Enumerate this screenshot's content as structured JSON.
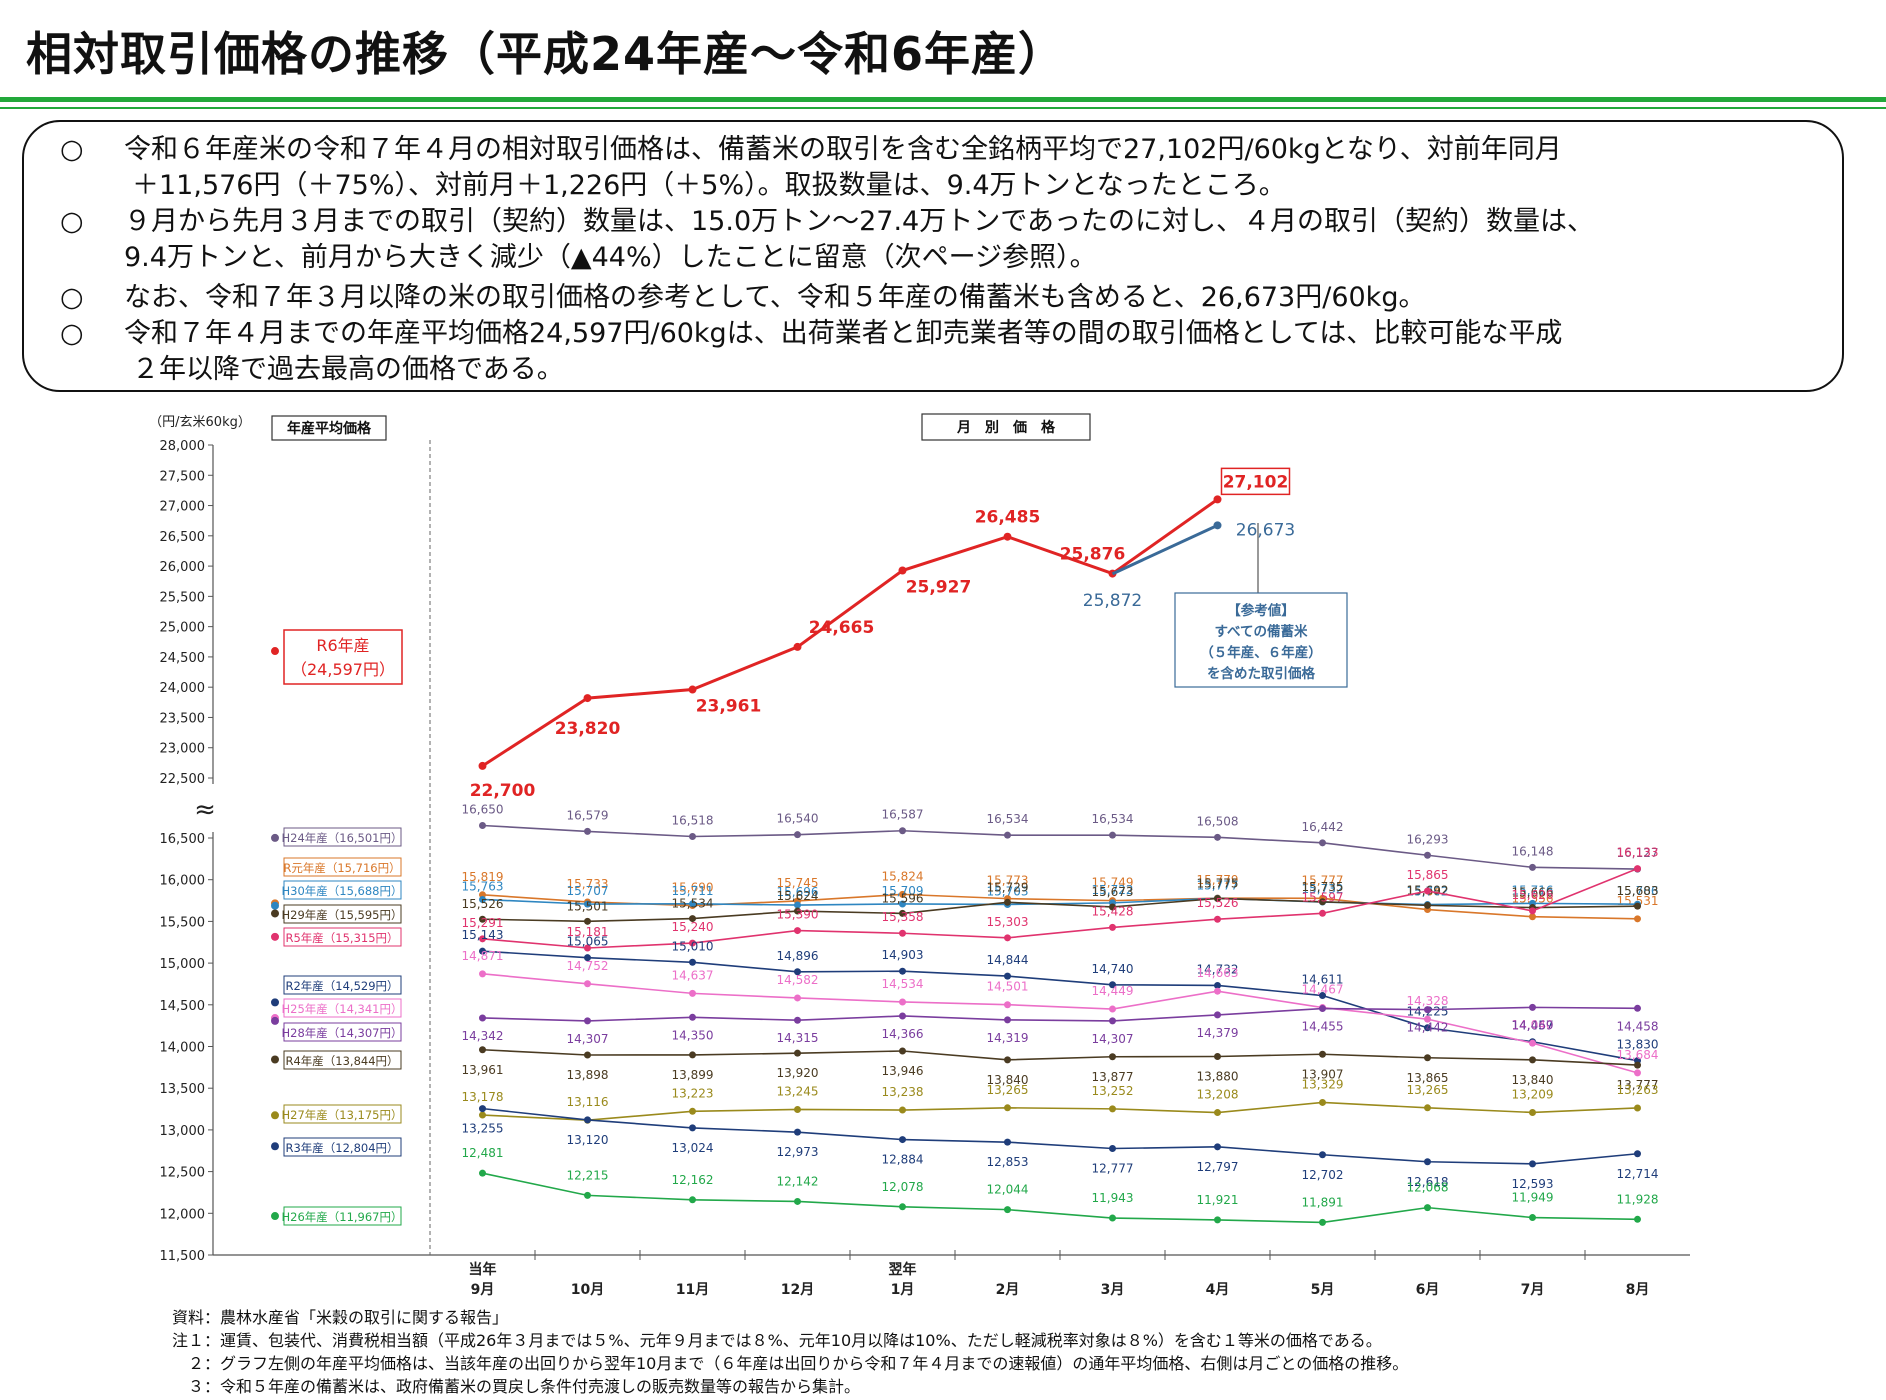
{
  "page": {
    "title": "相対取引価格の推移（平成24年産～令和6年産）",
    "bullets": [
      {
        "mark": "○",
        "lines": [
          "令和６年産米の令和７年４月の相対取引価格は、備蓄米の取引を含む全銘柄平均で27,102円/60kgとなり、対前年同月",
          "＋11,576円（＋75%）、対前月＋1,226円（＋5%）。取扱数量は、9.4万トンとなったところ。"
        ]
      },
      {
        "mark": "○",
        "lines": [
          "９月から先月３月までの取引（契約）数量は、15.0万トン～27.4万トンであったのに対し、４月の取引（契約）数量は、",
          "9.4万トンと、前月から大きく減少（▲44%）したことに留意（次ページ参照）。"
        ]
      },
      {
        "mark": "○",
        "lines": [
          "なお、令和７年３月以降の米の取引価格の参考として、令和５年産の備蓄米も含めると、26,673円/60kg。"
        ]
      },
      {
        "mark": "○",
        "lines": [
          "令和７年４月までの年産平均価格24,597円/60kgは、出荷業者と卸売業者等の間の取引価格としては、比較可能な平成",
          "２年以降で過去最高の価格である。"
        ]
      }
    ],
    "notes": [
      "資料：農林水産省「米穀の取引に関する報告」",
      "注１：運賃、包装代、消費税相当額（平成26年３月までは５%、元年９月までは８%、元年10月以降は10%、ただし軽減税率対象は８%）を含む１等米の価格である。",
      "　２：グラフ左側の年産平均価格は、当該年産の出回りから翌年10月まで（６年産は出回りから令和７年４月までの速報値）の通年平均価格、右側は月ごとの価格の推移。",
      "　３：令和５年産の備蓄米は、政府備蓄米の買戻し条件付売渡しの販売数量等の報告から集計。"
    ]
  },
  "chart_data": {
    "type": "line",
    "ylabel": "（円/玄米60kg）",
    "left_panel_label": "年産平均価格",
    "right_panel_label": "月　別　価　格",
    "axis_break": "≈",
    "upper_ylim": [
      22500,
      28000
    ],
    "lower_ylim": [
      11500,
      16500
    ],
    "upper_ticks": [
      "28,000",
      "27,500",
      "27,000",
      "26,500",
      "26,000",
      "25,500",
      "25,000",
      "24,500",
      "24,000",
      "23,500",
      "23,000",
      "22,500"
    ],
    "lower_ticks": [
      "16,500",
      "16,000",
      "15,500",
      "15,000",
      "14,500",
      "14,000",
      "13,500",
      "13,000",
      "12,500",
      "12,000",
      "11,500"
    ],
    "categories": [
      "9月",
      "10月",
      "11月",
      "12月",
      "1月",
      "2月",
      "3月",
      "4月",
      "5月",
      "6月",
      "7月",
      "8月"
    ],
    "category_top_labels": [
      "当年",
      "",
      "",
      "",
      "翌年",
      "",
      "",
      "",
      "",
      "",
      "",
      ""
    ],
    "series": [
      {
        "name": "H24年産",
        "avg_label": "H24年産（16,501円）",
        "avg": 16501,
        "color": "#6b5a86",
        "values": [
          16650,
          16579,
          16518,
          16540,
          16587,
          16534,
          16534,
          16508,
          16442,
          16293,
          16148,
          16127
        ],
        "labels": [
          "16,650",
          "16,579",
          "16,518",
          "16,540",
          "16,587",
          "16,534",
          "16,534",
          "16,508",
          "16,442",
          "16,293",
          "16,148",
          "16,127"
        ]
      },
      {
        "name": "R元年産",
        "avg_label": "R元年産（15,716円）",
        "avg": 15716,
        "color": "#d9772a",
        "values": [
          15819,
          15733,
          15690,
          15745,
          15824,
          15773,
          15749,
          15779,
          15777,
          15642,
          15556,
          15531
        ],
        "labels": [
          "15,819",
          "15,733",
          "15,690",
          "15,745",
          "15,824",
          "15,773",
          "15,749",
          "15,779",
          "15,777",
          "15,642",
          "15,556",
          "15,531"
        ]
      },
      {
        "name": "H30年産",
        "avg_label": "H30年産（15,688円）",
        "avg": 15688,
        "color": "#2e86c1",
        "values": [
          15763,
          15707,
          15711,
          15696,
          15709,
          15703,
          15722,
          15777,
          15732,
          15702,
          15716,
          15706
        ],
        "labels": [
          "15,763",
          "15,707",
          "15,711",
          "15,696",
          "15,709",
          "15,703",
          "15,722",
          "15,777",
          "15,732",
          "15,702",
          "15,716",
          "15,706"
        ]
      },
      {
        "name": "H29年産",
        "avg_label": "H29年産（15,595円）",
        "avg": 15595,
        "color": "#4a3b22",
        "values": [
          15526,
          15501,
          15534,
          15624,
          15596,
          15729,
          15673,
          15775,
          15735,
          15692,
          15666,
          15683
        ],
        "labels": [
          "15,526",
          "15,501",
          "15,534",
          "15,624",
          "15,596",
          "15,729",
          "15,673",
          "15,775",
          "15,735",
          "15,692",
          "15,666",
          "15,683"
        ]
      },
      {
        "name": "R5年産",
        "avg_label": "R5年産（15,315円）",
        "avg": 15315,
        "color": "#e0336e",
        "values": [
          15291,
          15181,
          15240,
          15390,
          15358,
          15303,
          15428,
          15526,
          15597,
          15865,
          15626,
          16133
        ],
        "labels": [
          "15,291",
          "15,181",
          "15,240",
          "15,390",
          "15,358",
          "15,303",
          "15,428",
          "15,526",
          "15,597",
          "15,865",
          "15,626",
          "16,133"
        ]
      },
      {
        "name": "R2年産",
        "avg_label": "R2年産（14,529円）",
        "avg": 14529,
        "color": "#1f3d7a",
        "values": [
          15143,
          15065,
          15010,
          14896,
          14903,
          14844,
          14740,
          14732,
          14611,
          14225,
          14057,
          13830
        ],
        "labels": [
          "15,143",
          "15,065",
          "15,010",
          "14,896",
          "14,903",
          "14,844",
          "14,740",
          "14,732",
          "14,611",
          "14,225",
          "14,057",
          "13,830"
        ]
      },
      {
        "name": "H25年産",
        "avg_label": "H25年産（14,341円）",
        "avg": 14341,
        "color": "#ec6fc8",
        "values": [
          14871,
          14752,
          14637,
          14582,
          14534,
          14501,
          14449,
          14663,
          14467,
          14328,
          14040,
          13684
        ],
        "labels": [
          "14,871",
          "14,752",
          "14,637",
          "14,582",
          "14,534",
          "14,501",
          "14,449",
          "14,663",
          "14,467",
          "14,328",
          "14,040",
          "13,684"
        ]
      },
      {
        "name": "H28年産",
        "avg_label": "H28年産（14,307円）",
        "avg": 14307,
        "color": "#7a3d9e",
        "values": [
          14342,
          14307,
          14350,
          14315,
          14366,
          14319,
          14307,
          14379,
          14455,
          14442,
          14469,
          14458
        ],
        "labels": [
          "14,342",
          "14,307",
          "14,350",
          "14,315",
          "14,366",
          "14,319",
          "14,307",
          "14,379",
          "14,455",
          "14,442",
          "14,469",
          "14,458"
        ]
      },
      {
        "name": "R4年産",
        "avg_label": "R4年産（13,844円）",
        "avg": 13844,
        "color": "#4a3b22",
        "values": [
          13961,
          13898,
          13899,
          13920,
          13946,
          13840,
          13877,
          13880,
          13907,
          13865,
          13840,
          13777
        ],
        "labels": [
          "13,961",
          "13,898",
          "13,899",
          "13,920",
          "13,946",
          "13,840",
          "13,877",
          "13,880",
          "13,907",
          "13,865",
          "13,840",
          "13,777"
        ]
      },
      {
        "name": "H27年産",
        "avg_label": "H27年産（13,175円）",
        "avg": 13175,
        "color": "#9a8a1c",
        "values": [
          13178,
          13116,
          13223,
          13245,
          13238,
          13265,
          13252,
          13208,
          13329,
          13265,
          13209,
          13263
        ],
        "labels": [
          "13,178",
          "13,116",
          "13,223",
          "13,245",
          "13,238",
          "13,265",
          "13,252",
          "13,208",
          "13,329",
          "13,265",
          "13,209",
          "13,263"
        ]
      },
      {
        "name": "R3年産",
        "avg_label": "R3年産（12,804円）",
        "avg": 12804,
        "color": "#1f3d7a",
        "values": [
          13255,
          13120,
          13024,
          12973,
          12884,
          12853,
          12777,
          12797,
          12702,
          12618,
          12593,
          12714
        ],
        "labels": [
          "13,255",
          "13,120",
          "13,024",
          "12,973",
          "12,884",
          "12,853",
          "12,777",
          "12,797",
          "12,702",
          "12,618",
          "12,593",
          "12,714"
        ]
      },
      {
        "name": "H26年産",
        "avg_label": "H26年産（11,967円）",
        "avg": 11967,
        "color": "#22a84a",
        "values": [
          12481,
          12215,
          12162,
          12142,
          12078,
          12044,
          11943,
          11921,
          11891,
          12068,
          11949,
          11928
        ],
        "labels": [
          "12,481",
          "12,215",
          "12,162",
          "12,142",
          "12,078",
          "12,044",
          "11,943",
          "11,921",
          "11,891",
          "12,068",
          "11,949",
          "11,928"
        ]
      }
    ],
    "r6": {
      "name": "R6年産",
      "avg_label": "R6年産",
      "avg_value_label": "（24,597円）",
      "avg": 24597,
      "color": "#e02424",
      "values": [
        22700,
        23820,
        23961,
        24665,
        25927,
        26485,
        25876,
        27102
      ],
      "labels": [
        "22,700",
        "23,820",
        "23,961",
        "24,665",
        "25,927",
        "26,485",
        "25,876",
        "27,102"
      ]
    },
    "reference": {
      "color": "#3a6a98",
      "values": [
        25872,
        26673
      ],
      "labels": [
        "25,872",
        "26,673"
      ],
      "note_lines": [
        "【参考値】",
        "すべての備蓄米",
        "（５年産、６年産）",
        "を含めた取引価格"
      ]
    }
  }
}
